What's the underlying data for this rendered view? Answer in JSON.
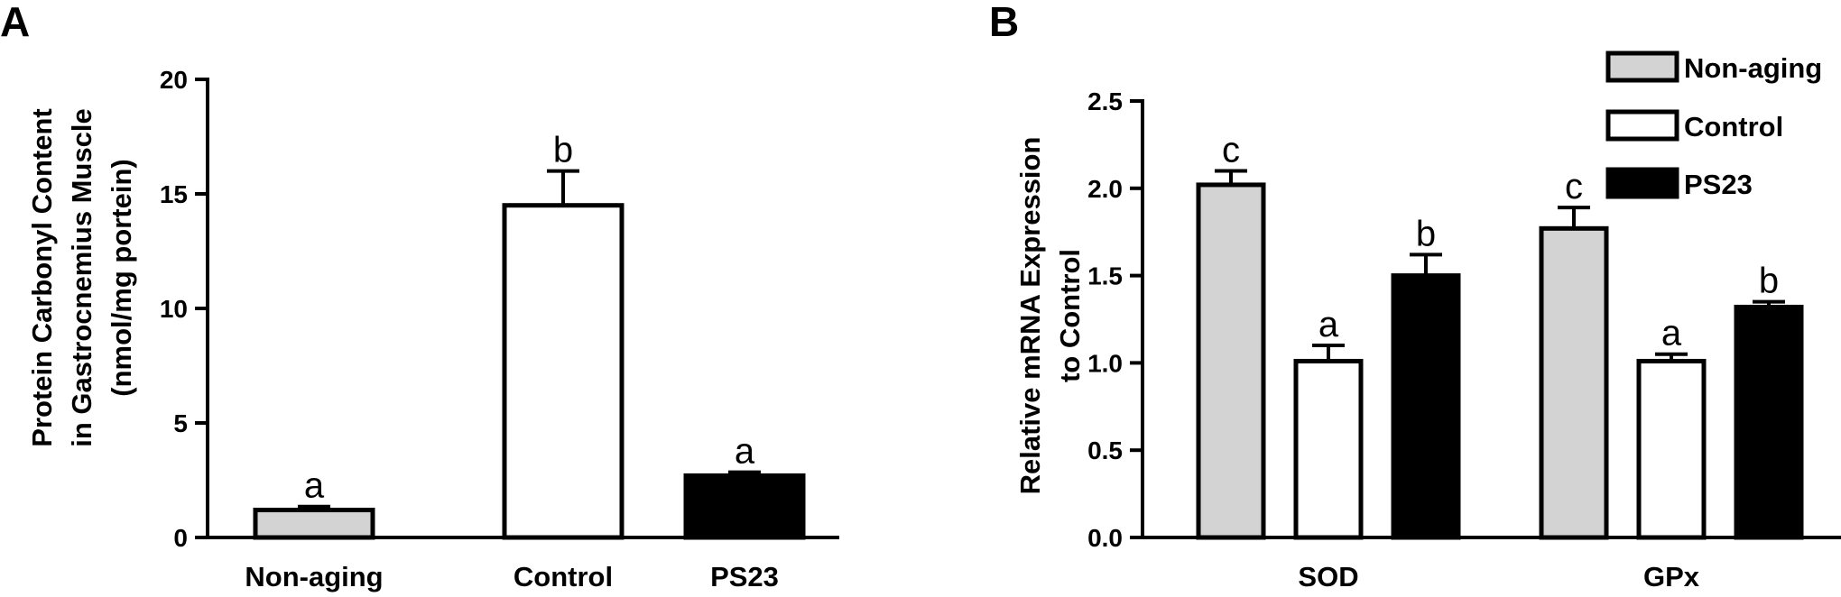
{
  "colors": {
    "non_aging": "#d3d3d3",
    "control": "#ffffff",
    "ps23": "#000000",
    "stroke": "#000000"
  },
  "chart_data": [
    {
      "panel_label": "A",
      "type": "bar",
      "categories": [
        "Non-aging",
        "Control",
        "PS23"
      ],
      "values": [
        1.2,
        14.5,
        2.7
      ],
      "errors": [
        0.15,
        1.5,
        0.15
      ],
      "significance": [
        "a",
        "b",
        "a"
      ],
      "ylabel_lines": [
        "Protein Carbonyl Content",
        "in Gastrocnemius Muscle",
        "(nmol/mg portein)"
      ],
      "ylim": [
        0,
        20
      ],
      "yticks": [
        "0",
        "5",
        "10",
        "15",
        "20"
      ],
      "ytick_values": [
        0,
        5,
        10,
        15,
        20
      ]
    },
    {
      "panel_label": "B",
      "type": "bar",
      "categories": [
        "SOD",
        "GPx"
      ],
      "series": [
        {
          "name": "Non-aging",
          "values": [
            2.02,
            1.77
          ],
          "errors": [
            0.08,
            0.12
          ],
          "significance": [
            "c",
            "c"
          ]
        },
        {
          "name": "Control",
          "values": [
            1.01,
            1.01
          ],
          "errors": [
            0.09,
            0.04
          ],
          "significance": [
            "a",
            "a"
          ]
        },
        {
          "name": "PS23",
          "values": [
            1.5,
            1.32
          ],
          "errors": [
            0.12,
            0.03
          ],
          "significance": [
            "b",
            "b"
          ]
        }
      ],
      "ylabel_lines": [
        "Relative mRNA Expression",
        "to Control"
      ],
      "ylim": [
        0,
        2.5
      ],
      "yticks": [
        "0.0",
        "0.5",
        "1.0",
        "1.5",
        "2.0",
        "2.5"
      ],
      "ytick_values": [
        0,
        0.5,
        1.0,
        1.5,
        2.0,
        2.5
      ],
      "legend_position": "top-right"
    }
  ]
}
